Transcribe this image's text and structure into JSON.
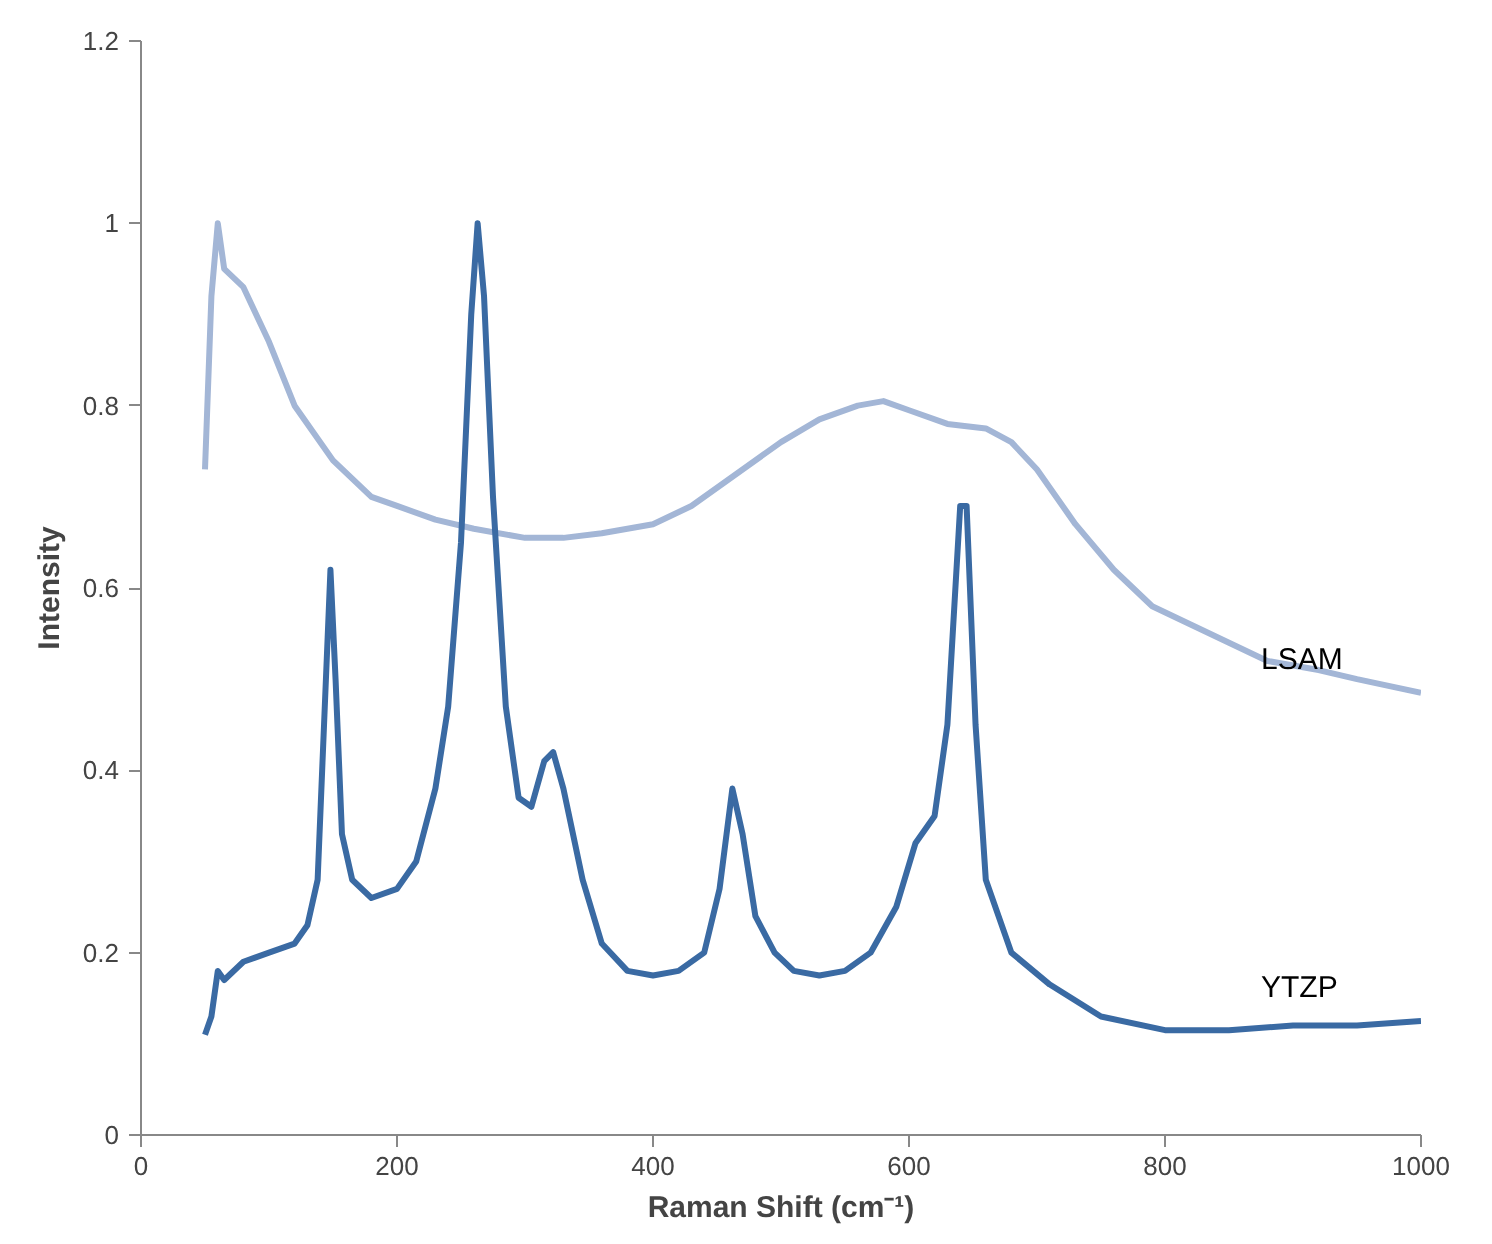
{
  "chart_data": {
    "type": "line",
    "xlabel": "Raman Shift (cm⁻¹)",
    "ylabel": "Intensity",
    "xlim": [
      0,
      1000
    ],
    "xticks": [
      0,
      200,
      400,
      600,
      800,
      1000
    ],
    "ylim": [
      0,
      1.2
    ],
    "yticks": [
      0,
      0.2,
      0.4,
      0.6,
      0.8,
      1,
      1.2
    ],
    "grid": false,
    "legend": false,
    "series": [
      {
        "name": "LSAM",
        "color": "#a3b6d6",
        "x": [
          50,
          55,
          60,
          65,
          80,
          100,
          120,
          150,
          180,
          200,
          230,
          260,
          300,
          330,
          360,
          400,
          430,
          470,
          500,
          530,
          560,
          580,
          600,
          630,
          660,
          680,
          700,
          730,
          760,
          790,
          820,
          850,
          880,
          920,
          950,
          1000
        ],
        "values": [
          0.73,
          0.92,
          1.0,
          0.95,
          0.93,
          0.87,
          0.8,
          0.74,
          0.7,
          0.69,
          0.675,
          0.665,
          0.655,
          0.655,
          0.66,
          0.67,
          0.69,
          0.73,
          0.76,
          0.785,
          0.8,
          0.805,
          0.795,
          0.78,
          0.775,
          0.76,
          0.73,
          0.67,
          0.62,
          0.58,
          0.56,
          0.54,
          0.52,
          0.51,
          0.5,
          0.485
        ]
      },
      {
        "name": "YTZP",
        "color": "#3a6aa3",
        "x": [
          50,
          55,
          60,
          65,
          80,
          100,
          120,
          130,
          138,
          143,
          148,
          152,
          157,
          165,
          180,
          200,
          215,
          230,
          240,
          250,
          258,
          263,
          268,
          275,
          285,
          295,
          305,
          315,
          322,
          330,
          345,
          360,
          380,
          400,
          420,
          440,
          452,
          462,
          470,
          480,
          495,
          510,
          530,
          550,
          570,
          590,
          605,
          620,
          630,
          640,
          645,
          652,
          660,
          680,
          710,
          750,
          800,
          850,
          900,
          950,
          1000
        ],
        "values": [
          0.11,
          0.13,
          0.18,
          0.17,
          0.19,
          0.2,
          0.21,
          0.23,
          0.28,
          0.45,
          0.62,
          0.5,
          0.33,
          0.28,
          0.26,
          0.27,
          0.3,
          0.38,
          0.47,
          0.65,
          0.9,
          1.0,
          0.92,
          0.7,
          0.47,
          0.37,
          0.36,
          0.41,
          0.42,
          0.38,
          0.28,
          0.21,
          0.18,
          0.175,
          0.18,
          0.2,
          0.27,
          0.38,
          0.33,
          0.24,
          0.2,
          0.18,
          0.175,
          0.18,
          0.2,
          0.25,
          0.32,
          0.35,
          0.45,
          0.69,
          0.69,
          0.45,
          0.28,
          0.2,
          0.165,
          0.13,
          0.115,
          0.115,
          0.12,
          0.12,
          0.125
        ]
      }
    ]
  }
}
